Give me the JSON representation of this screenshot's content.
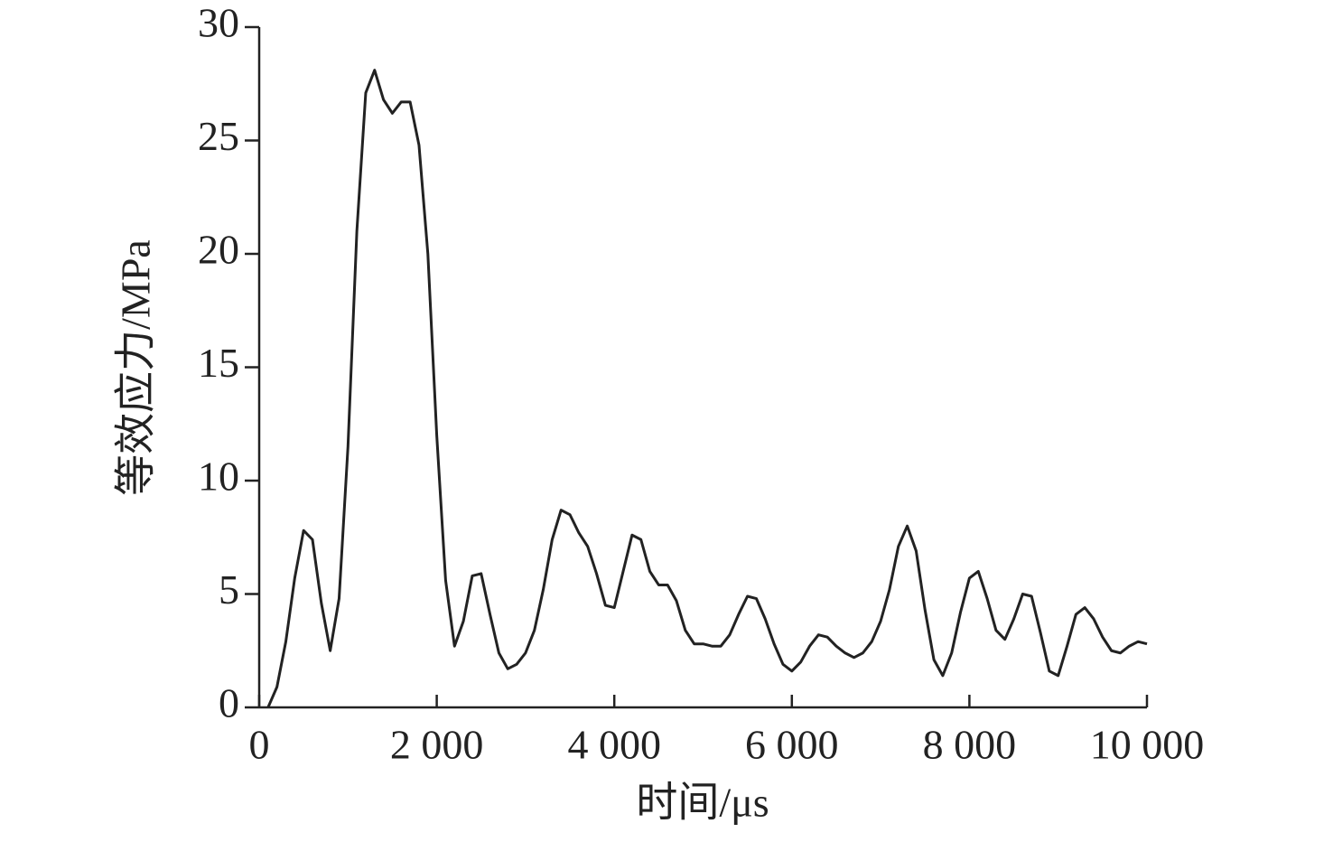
{
  "chart_data": {
    "type": "line",
    "xlabel": "时间/μs",
    "ylabel": "等效应力/MPa",
    "x": [
      100,
      200,
      300,
      400,
      500,
      600,
      700,
      800,
      900,
      1000,
      1100,
      1200,
      1300,
      1400,
      1500,
      1600,
      1700,
      1800,
      1900,
      2000,
      2100,
      2200,
      2300,
      2400,
      2500,
      2600,
      2700,
      2800,
      2900,
      3000,
      3100,
      3200,
      3300,
      3400,
      3500,
      3600,
      3700,
      3800,
      3900,
      4000,
      4100,
      4200,
      4300,
      4400,
      4500,
      4600,
      4700,
      4800,
      4900,
      5000,
      5100,
      5200,
      5300,
      5400,
      5500,
      5600,
      5700,
      5800,
      5900,
      6000,
      6100,
      6200,
      6300,
      6400,
      6500,
      6600,
      6700,
      6800,
      6900,
      7000,
      7100,
      7200,
      7300,
      7400,
      7500,
      7600,
      7700,
      7800,
      7900,
      8000,
      8100,
      8200,
      8300,
      8400,
      8500,
      8600,
      8700,
      8800,
      8900,
      9000,
      9100,
      9200,
      9300,
      9400,
      9500,
      9600,
      9700,
      9800,
      9900,
      10000
    ],
    "series": [
      {
        "color": "#222222",
        "values": [
          0,
          0.9,
          2.9,
          5.7,
          7.8,
          7.4,
          4.6,
          2.5,
          4.8,
          11.5,
          21,
          27.1,
          28.1,
          26.8,
          26.2,
          26.7,
          26.7,
          24.8,
          20,
          12,
          5.6,
          2.7,
          3.8,
          5.8,
          5.9,
          4.1,
          2.4,
          1.7,
          1.9,
          2.4,
          3.4,
          5.2,
          7.4,
          8.7,
          8.5,
          7.7,
          7.1,
          5.9,
          4.5,
          4.4,
          6.0,
          7.6,
          7.4,
          6.0,
          5.4,
          5.4,
          4.7,
          3.4,
          2.8,
          2.8,
          2.7,
          2.7,
          3.2,
          4.1,
          4.9,
          4.8,
          3.9,
          2.8,
          1.9,
          1.6,
          2.0,
          2.7,
          3.2,
          3.1,
          2.7,
          2.4,
          2.2,
          2.4,
          2.9,
          3.8,
          5.2,
          7.1,
          8.0,
          6.9,
          4.3,
          2.1,
          1.4,
          2.4,
          4.2,
          5.7,
          6.0,
          4.8,
          3.4,
          3.0,
          3.9,
          5.0,
          4.9,
          3.3,
          1.6,
          1.4,
          2.7,
          4.1,
          4.4,
          3.9,
          3.1,
          2.5,
          2.4,
          2.7,
          2.9,
          2.8
        ]
      }
    ],
    "xlim": [
      0,
      10000
    ],
    "xticks": [
      0,
      {
        "value": 2000,
        "label": "2 000"
      },
      {
        "value": 4000,
        "label": "4 000"
      },
      {
        "value": 6000,
        "label": "6 000"
      },
      {
        "value": 8000,
        "label": "8 000"
      },
      {
        "value": 10000,
        "label": "10 000"
      }
    ],
    "ylim": [
      0,
      30
    ],
    "yticks": [
      0,
      5,
      10,
      15,
      20,
      25,
      30
    ],
    "grid": false
  }
}
